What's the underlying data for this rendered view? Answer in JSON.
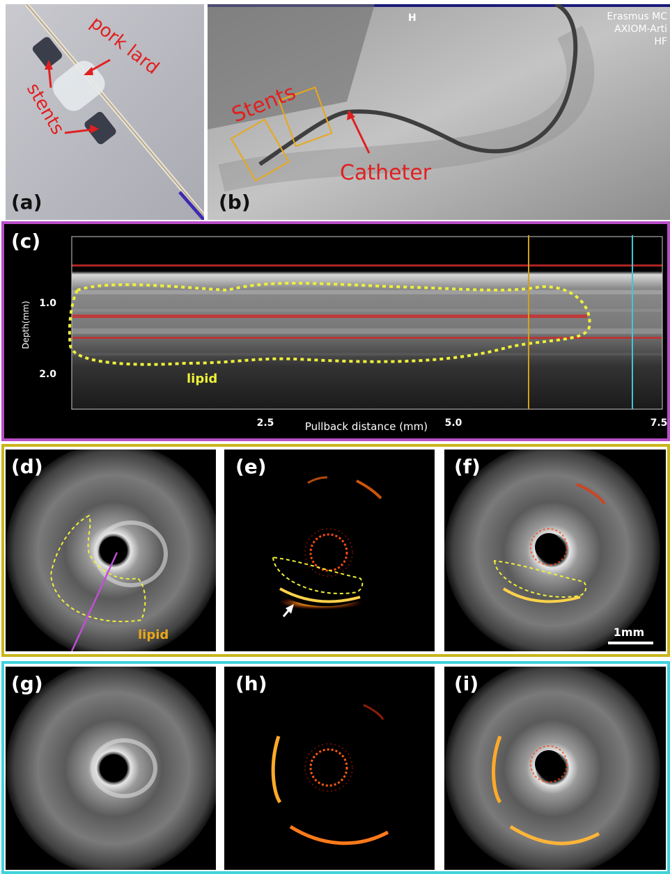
{
  "panel_a": {
    "label": "(a)",
    "annotations": {
      "pork_lard": "pork lard",
      "stents": "stents"
    }
  },
  "panel_b": {
    "label": "(b)",
    "header": "H",
    "corner_lines": [
      "Erasmus MC",
      "AXIOM-Arti",
      "HF"
    ],
    "annotations": {
      "stents": "Stents",
      "catheter": "Catheter"
    }
  },
  "panel_c": {
    "label": "(c)",
    "ylabel": "Depth(mm)",
    "xlabel": "Pullback distance (mm)",
    "yticks": [
      "1.0",
      "2.0"
    ],
    "xticks": [
      "2.5",
      "5.0",
      "7.5"
    ],
    "annotation": "lipid",
    "marker_colors": {
      "yellow": "#d4a017",
      "cyan": "#3ec8d8"
    }
  },
  "row_d_f": {
    "labels": [
      "(d)",
      "(e)",
      "(f)"
    ],
    "lipid_label": "lipid",
    "scale_bar": "1mm",
    "frame_color": "#c9b51d"
  },
  "row_g_i": {
    "labels": [
      "(g)",
      "(h)",
      "(i)"
    ],
    "frame_color": "#3fd3dc"
  },
  "frame_c_color": "#b94ec8"
}
